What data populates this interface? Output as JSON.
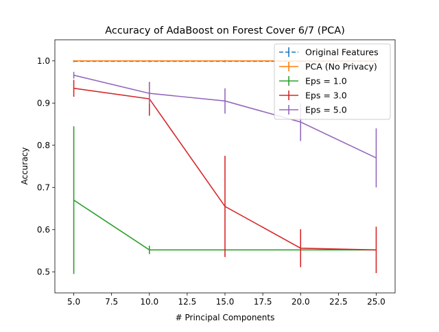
{
  "chart_data": {
    "type": "line",
    "title": "Accuracy of AdaBoost on Forest Cover 6/7 (PCA)",
    "xlabel": "# Principal Components",
    "ylabel": "Accuracy",
    "xlim": [
      3.75,
      26.25
    ],
    "ylim": [
      0.45,
      1.05
    ],
    "xticks": [
      5.0,
      7.5,
      10.0,
      12.5,
      15.0,
      17.5,
      20.0,
      22.5,
      25.0
    ],
    "xtick_labels": [
      "5.0",
      "7.5",
      "10.0",
      "12.5",
      "15.0",
      "17.5",
      "20.0",
      "22.5",
      "25.0"
    ],
    "yticks": [
      0.5,
      0.6,
      0.7,
      0.8,
      0.9,
      1.0
    ],
    "ytick_labels": [
      "0.5",
      "0.6",
      "0.7",
      "0.8",
      "0.9",
      "1.0"
    ],
    "grid": false,
    "legend_position": "top-right",
    "x": [
      5,
      10,
      15,
      20,
      25
    ],
    "series": [
      {
        "name": "Original Features",
        "color": "#1f77b4",
        "dashed": true,
        "values": [
          0.999,
          0.999,
          0.999,
          0.999,
          0.999
        ],
        "err": [
          0.002,
          0.002,
          0.002,
          0.002,
          0.002
        ]
      },
      {
        "name": "PCA (No Privacy)",
        "color": "#ff7f0e",
        "dashed": false,
        "values": [
          1.0,
          1.0,
          1.0,
          1.0,
          1.0
        ],
        "err": [
          0.002,
          0.002,
          0.002,
          0.002,
          0.002
        ]
      },
      {
        "name": "Eps = 1.0",
        "color": "#2ca02c",
        "dashed": false,
        "values": [
          0.67,
          0.552,
          0.552,
          0.552,
          0.552
        ],
        "err": [
          0.175,
          0.01,
          0.0,
          0.0,
          0.0
        ]
      },
      {
        "name": "Eps = 3.0",
        "color": "#d62728",
        "dashed": false,
        "values": [
          0.935,
          0.91,
          0.655,
          0.556,
          0.552
        ],
        "err": [
          0.02,
          0.04,
          0.12,
          0.045,
          0.055
        ]
      },
      {
        "name": "Eps = 5.0",
        "color": "#9467bd",
        "dashed": false,
        "values": [
          0.966,
          0.923,
          0.905,
          0.855,
          0.77
        ],
        "err": [
          0.008,
          0.025,
          0.03,
          0.045,
          0.07
        ]
      }
    ]
  }
}
